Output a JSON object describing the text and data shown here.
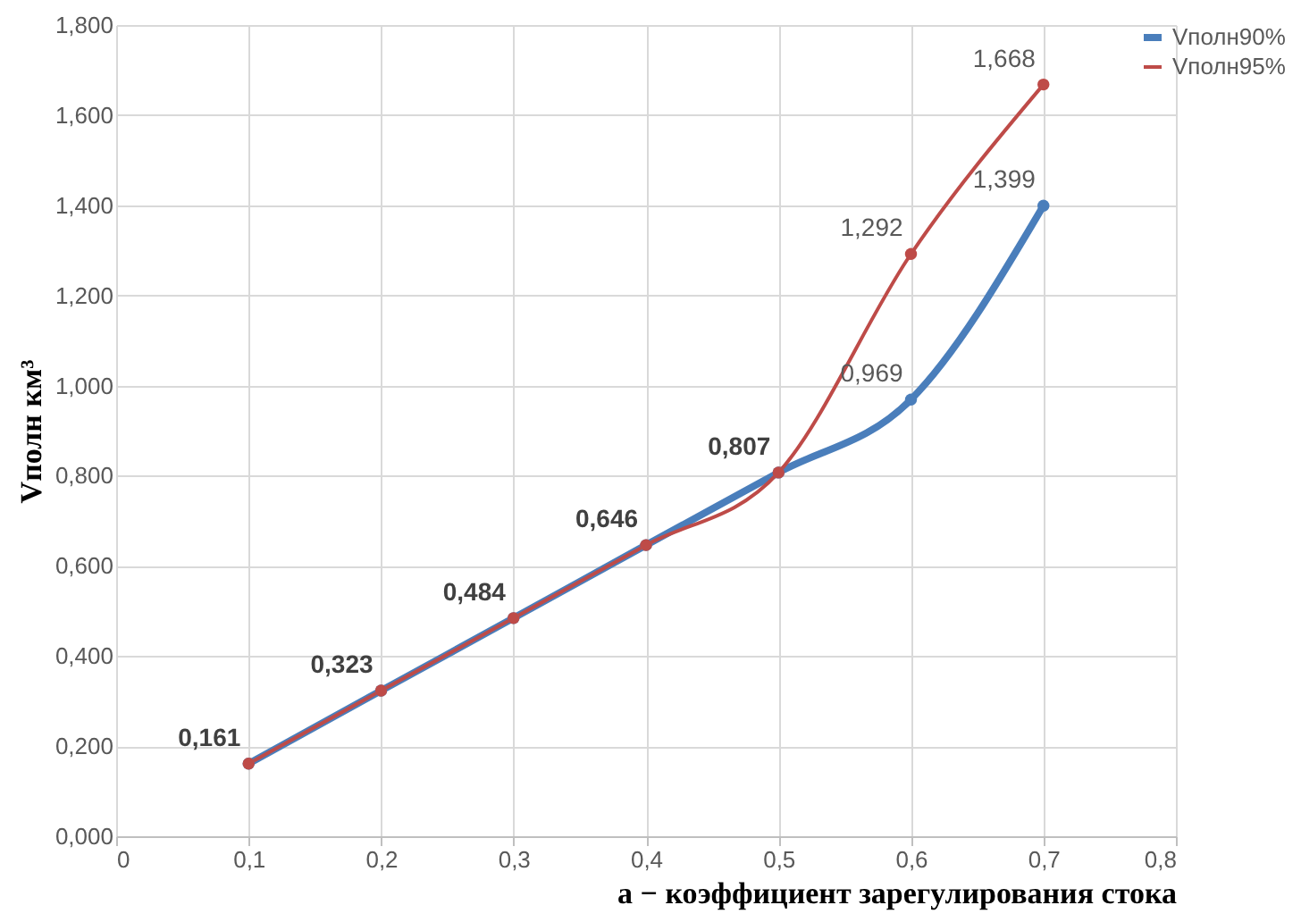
{
  "chart_data": {
    "type": "line",
    "xlabel": "a − коэффициент зарегулирования стока",
    "ylabel": "Vполн км³",
    "x": [
      0.1,
      0.2,
      0.3,
      0.4,
      0.5,
      0.6,
      0.7
    ],
    "series": [
      {
        "name": "Vполн90%",
        "color": "#4a7ebb",
        "values": [
          0.161,
          0.323,
          0.484,
          0.646,
          0.807,
          0.969,
          1.399
        ],
        "value_labels": [
          "0,161",
          "0,323",
          "0,484",
          "0,646",
          "0,807",
          "0,969",
          "1,399"
        ]
      },
      {
        "name": "Vполн95%",
        "color": "#be4b48",
        "values": [
          0.161,
          0.323,
          0.484,
          0.646,
          0.807,
          1.292,
          1.668
        ],
        "value_labels": [
          null,
          null,
          null,
          null,
          null,
          "1,292",
          "1,668"
        ]
      }
    ],
    "xlim": [
      0,
      0.8
    ],
    "xticks": [
      0,
      {
        "value": 0.1,
        "label": "0,1"
      },
      {
        "value": 0.2,
        "label": "0,2"
      },
      {
        "value": 0.3,
        "label": "0,3"
      },
      {
        "value": 0.4,
        "label": "0,4"
      },
      {
        "value": 0.5,
        "label": "0,5"
      },
      {
        "value": 0.6,
        "label": "0,6"
      },
      {
        "value": 0.7,
        "label": "0,7"
      },
      {
        "value": 0.8,
        "label": "0,8"
      }
    ],
    "ylim": [
      0,
      1.8
    ],
    "yticks": [
      {
        "value": 0,
        "label": "0,000"
      },
      {
        "value": 0.2,
        "label": "0,200"
      },
      {
        "value": 0.4,
        "label": "0,400"
      },
      {
        "value": 0.6,
        "label": "0,600"
      },
      {
        "value": 0.8,
        "label": "0,800"
      },
      {
        "value": 1.0,
        "label": "1,000"
      },
      {
        "value": 1.2,
        "label": "1,200"
      },
      {
        "value": 1.4,
        "label": "1,400"
      },
      {
        "value": 1.6,
        "label": "1,600"
      },
      {
        "value": 1.8,
        "label": "1,800"
      }
    ],
    "grid": true,
    "legend": "right",
    "marker": "circle",
    "line_style": "solid"
  }
}
